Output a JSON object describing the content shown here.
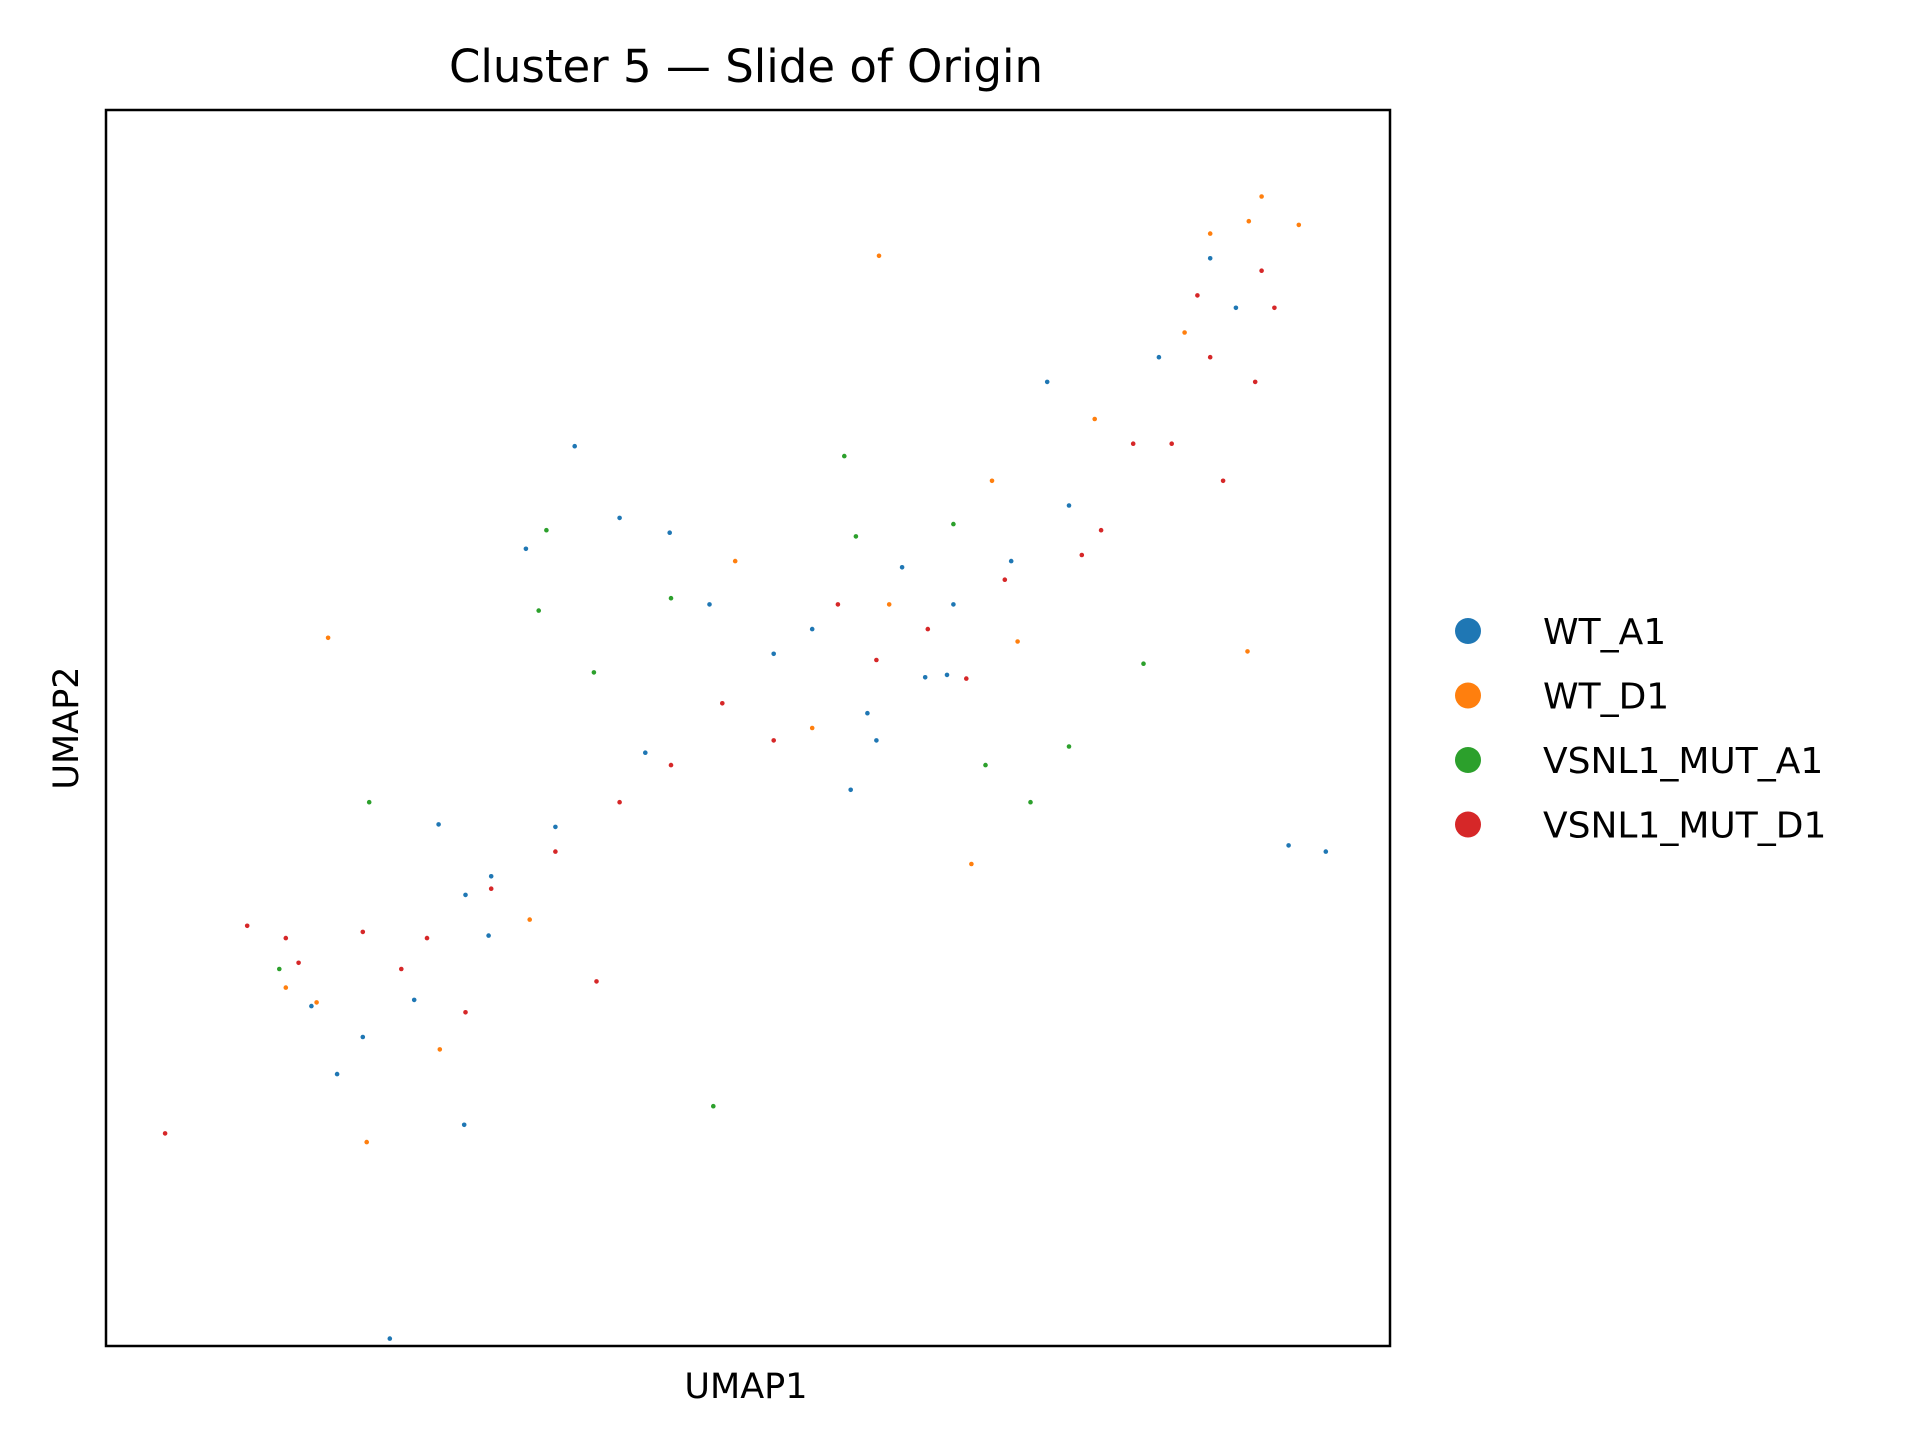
{
  "chart_data": {
    "type": "scatter",
    "title": "Cluster 5 — Slide of Origin",
    "xlabel": "UMAP1",
    "ylabel": "UMAP2",
    "xlim": [
      0,
      100
    ],
    "ylim": [
      0,
      100
    ],
    "grid": false,
    "legend_position": "right-outside",
    "series": [
      {
        "name": "WT_A1",
        "color": "#1f77b4",
        "values": [
          [
            29.8,
            33.2
          ],
          [
            27.9,
            17.9
          ],
          [
            22.1,
            0.6
          ],
          [
            73.3,
            78.0
          ],
          [
            32.7,
            64.5
          ],
          [
            25.9,
            42.2
          ],
          [
            43.9,
            65.8
          ],
          [
            92.1,
            40.5
          ],
          [
            95.0,
            40.0
          ],
          [
            65.5,
            54.3
          ],
          [
            59.3,
            51.2
          ],
          [
            36.5,
            72.8
          ],
          [
            63.8,
            54.1
          ],
          [
            40.0,
            67.0
          ],
          [
            70.5,
            63.5
          ],
          [
            52.0,
            56.0
          ],
          [
            58.0,
            45.0
          ],
          [
            60.0,
            49.0
          ],
          [
            82.0,
            80.0
          ],
          [
            47.0,
            60.0
          ],
          [
            18.0,
            22.0
          ],
          [
            20.0,
            25.0
          ],
          [
            24.0,
            28.0
          ],
          [
            16.0,
            27.5
          ],
          [
            30.0,
            38.0
          ],
          [
            28.0,
            36.5
          ],
          [
            35.0,
            42.0
          ],
          [
            42.0,
            48.0
          ],
          [
            55.0,
            58.0
          ],
          [
            62.0,
            63.0
          ],
          [
            66.0,
            60.0
          ],
          [
            75.0,
            68.0
          ],
          [
            86.0,
            88.0
          ],
          [
            88.0,
            84.0
          ]
        ]
      },
      {
        "name": "WT_D1",
        "color": "#ff7f0e",
        "values": [
          [
            17.3,
            57.3
          ],
          [
            60.2,
            88.2
          ],
          [
            92.9,
            90.7
          ],
          [
            88.9,
            56.2
          ],
          [
            20.3,
            16.5
          ],
          [
            67.4,
            39.0
          ],
          [
            16.4,
            27.8
          ],
          [
            55.0,
            50.0
          ],
          [
            69.0,
            70.0
          ],
          [
            90.0,
            93.0
          ],
          [
            89.0,
            91.0
          ],
          [
            86.0,
            90.0
          ],
          [
            14.0,
            29.0
          ],
          [
            26.0,
            24.0
          ],
          [
            33.0,
            34.5
          ],
          [
            61.0,
            60.0
          ],
          [
            71.0,
            57.0
          ],
          [
            77.0,
            75.0
          ],
          [
            49.0,
            63.5
          ],
          [
            84.0,
            82.0
          ]
        ]
      },
      {
        "name": "VSNL1_MUT_A1",
        "color": "#2ca02c",
        "values": [
          [
            47.3,
            19.4
          ],
          [
            33.7,
            59.5
          ],
          [
            58.4,
            65.5
          ],
          [
            68.5,
            47.0
          ],
          [
            34.3,
            66.0
          ],
          [
            20.5,
            44.0
          ],
          [
            75.0,
            48.5
          ],
          [
            80.8,
            55.2
          ],
          [
            57.5,
            72.0
          ],
          [
            44.0,
            60.5
          ],
          [
            38.0,
            54.5
          ],
          [
            66.0,
            66.5
          ],
          [
            13.5,
            30.5
          ],
          [
            72.0,
            44.0
          ]
        ]
      },
      {
        "name": "VSNL1_MUT_D1",
        "color": "#d62728",
        "values": [
          [
            4.6,
            17.2
          ],
          [
            38.2,
            29.5
          ],
          [
            91.0,
            84.0
          ],
          [
            89.5,
            78.0
          ],
          [
            87.0,
            70.0
          ],
          [
            80.0,
            73.0
          ],
          [
            77.5,
            66.0
          ],
          [
            64.0,
            58.0
          ],
          [
            52.0,
            49.0
          ],
          [
            48.0,
            52.0
          ],
          [
            44.0,
            47.0
          ],
          [
            40.0,
            44.0
          ],
          [
            35.0,
            40.0
          ],
          [
            30.0,
            37.0
          ],
          [
            25.0,
            33.0
          ],
          [
            20.0,
            33.5
          ],
          [
            15.0,
            31.0
          ],
          [
            14.0,
            33.0
          ],
          [
            11.0,
            34.0
          ],
          [
            28.0,
            27.0
          ],
          [
            23.0,
            30.5
          ],
          [
            60.0,
            55.5
          ],
          [
            70.0,
            62.0
          ],
          [
            83.0,
            73.0
          ],
          [
            86.0,
            80.0
          ],
          [
            90.0,
            87.0
          ],
          [
            85.0,
            85.0
          ],
          [
            76.0,
            64.0
          ],
          [
            57.0,
            60.0
          ],
          [
            67.0,
            54.0
          ]
        ]
      }
    ]
  }
}
